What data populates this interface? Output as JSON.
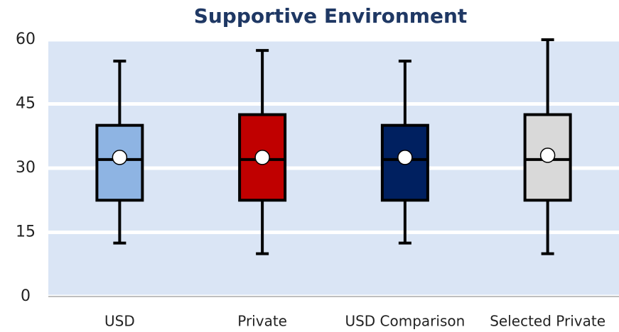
{
  "chart_data": {
    "type": "box",
    "title": "Supportive Environment",
    "categories": [
      "USD",
      "Private",
      "USD Comparison",
      "Selected Private"
    ],
    "boxes": [
      {
        "min": 12.5,
        "q1": 22.5,
        "median": 32,
        "q3": 40,
        "max": 55,
        "mean": 32.5,
        "color": "#8eb4e3"
      },
      {
        "min": 10,
        "q1": 22.5,
        "median": 32,
        "q3": 42.5,
        "max": 57.5,
        "mean": 32.5,
        "color": "#c00000"
      },
      {
        "min": 12.5,
        "q1": 22.5,
        "median": 32,
        "q3": 40,
        "max": 55,
        "mean": 32.5,
        "color": "#002060"
      },
      {
        "min": 10,
        "q1": 22.5,
        "median": 32,
        "q3": 42.5,
        "max": 60,
        "mean": 33,
        "color": "#d9d9d9"
      }
    ],
    "ylim": [
      0,
      60
    ],
    "yticks": [
      0,
      15,
      30,
      45,
      60
    ],
    "grid": true
  }
}
